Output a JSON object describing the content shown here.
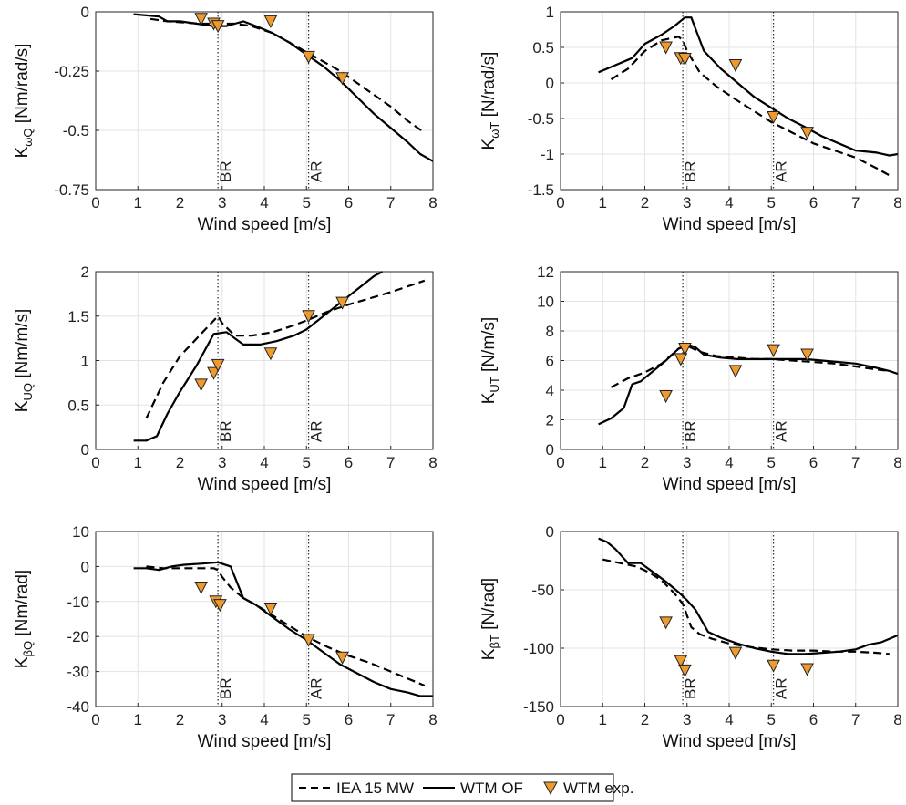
{
  "legend": [
    {
      "name": "IEA 15 MW",
      "style": "dashed"
    },
    {
      "name": "WTM OF",
      "style": "solid"
    },
    {
      "name": "WTM exp.",
      "style": "marker"
    }
  ],
  "colors": {
    "line": "#000000",
    "marker_fill": "#EE9A2E",
    "marker_edge": "#222222",
    "grid": "#e3e3e3",
    "vline": "#333333"
  },
  "chart_data": [
    {
      "type": "line",
      "ylabel_main": "K",
      "ylabel_sub": "ωQ",
      "ylabel_unit": " [Nm/rad/s]",
      "xlabel": "Wind speed [m/s]",
      "xlim": [
        0,
        8
      ],
      "ylim": [
        -0.75,
        0
      ],
      "xticks": [
        0,
        1,
        2,
        3,
        4,
        5,
        6,
        7,
        8
      ],
      "xtick_labels": [
        "0",
        "1",
        "2",
        "3",
        "4",
        "5",
        "6",
        "7",
        "8"
      ],
      "yticks": [
        0,
        -0.25,
        -0.5,
        -0.75
      ],
      "ytick_labels": [
        "0",
        "-0.25",
        "-0.5",
        "-0.75"
      ],
      "grid": true,
      "vlines": [
        {
          "x": 2.9,
          "label": "BR"
        },
        {
          "x": 5.05,
          "label": "AR"
        }
      ],
      "series": [
        {
          "name": "IEA 15 MW",
          "style": "dashed",
          "x": [
            1.3,
            1.7,
            2.1,
            2.5,
            2.9,
            3.3,
            3.7,
            4.2,
            4.6,
            5.0,
            5.4,
            5.8,
            6.2,
            6.6,
            7.0,
            7.4,
            7.8
          ],
          "y": [
            -0.03,
            -0.04,
            -0.045,
            -0.05,
            -0.05,
            -0.05,
            -0.06,
            -0.09,
            -0.13,
            -0.17,
            -0.21,
            -0.25,
            -0.3,
            -0.35,
            -0.4,
            -0.46,
            -0.51
          ]
        },
        {
          "name": "WTM OF",
          "style": "solid",
          "x": [
            0.9,
            1.2,
            1.5,
            1.7,
            2.0,
            2.4,
            2.8,
            3.1,
            3.3,
            3.5,
            3.8,
            4.2,
            4.6,
            5.0,
            5.4,
            5.8,
            6.2,
            6.6,
            7.0,
            7.4,
            7.7,
            8.0
          ],
          "y": [
            -0.01,
            -0.015,
            -0.02,
            -0.04,
            -0.04,
            -0.05,
            -0.06,
            -0.06,
            -0.05,
            -0.04,
            -0.06,
            -0.09,
            -0.13,
            -0.18,
            -0.23,
            -0.29,
            -0.36,
            -0.43,
            -0.49,
            -0.55,
            -0.6,
            -0.63
          ]
        },
        {
          "name": "WTM exp.",
          "style": "marker",
          "x": [
            2.5,
            2.8,
            2.9,
            4.15,
            5.05,
            5.85
          ],
          "y": [
            -0.03,
            -0.05,
            -0.06,
            -0.04,
            -0.19,
            -0.28
          ]
        }
      ]
    },
    {
      "type": "line",
      "ylabel_main": "K",
      "ylabel_sub": "ωT",
      "ylabel_unit": " [N/rad/s]",
      "xlabel": "Wind speed [m/s]",
      "xlim": [
        0,
        8
      ],
      "ylim": [
        -1.5,
        1
      ],
      "xticks": [
        0,
        1,
        2,
        3,
        4,
        5,
        6,
        7,
        8
      ],
      "xtick_labels": [
        "0",
        "1",
        "2",
        "3",
        "4",
        "5",
        "6",
        "7",
        "8"
      ],
      "yticks": [
        1,
        0.5,
        0,
        -0.5,
        -1,
        -1.5
      ],
      "ytick_labels": [
        "1",
        "0.5",
        "0",
        "-0.5",
        "-1",
        "-1.5"
      ],
      "grid": true,
      "vlines": [
        {
          "x": 2.9,
          "label": "BR"
        },
        {
          "x": 5.05,
          "label": "AR"
        }
      ],
      "series": [
        {
          "name": "IEA 15 MW",
          "style": "dashed",
          "x": [
            1.2,
            1.6,
            2.0,
            2.4,
            2.8,
            2.9,
            3.0,
            3.3,
            3.7,
            4.2,
            4.6,
            5.0,
            5.5,
            6.0,
            6.5,
            7.0,
            7.5,
            7.8
          ],
          "y": [
            0.05,
            0.2,
            0.45,
            0.6,
            0.65,
            0.6,
            0.45,
            0.15,
            -0.05,
            -0.25,
            -0.4,
            -0.55,
            -0.7,
            -0.85,
            -0.95,
            -1.05,
            -1.2,
            -1.3
          ]
        },
        {
          "name": "WTM OF",
          "style": "solid",
          "x": [
            0.9,
            1.3,
            1.7,
            2.0,
            2.4,
            2.7,
            2.95,
            3.1,
            3.4,
            3.8,
            4.2,
            4.6,
            5.0,
            5.4,
            5.8,
            6.2,
            6.6,
            7.0,
            7.5,
            7.8,
            8.0
          ],
          "y": [
            0.15,
            0.25,
            0.35,
            0.55,
            0.68,
            0.8,
            0.92,
            0.92,
            0.45,
            0.2,
            0.0,
            -0.2,
            -0.35,
            -0.5,
            -0.62,
            -0.75,
            -0.85,
            -0.95,
            -0.98,
            -1.02,
            -1.0
          ]
        },
        {
          "name": "WTM exp.",
          "style": "marker",
          "x": [
            2.5,
            2.85,
            2.95,
            4.15,
            5.05,
            5.85
          ],
          "y": [
            0.5,
            0.35,
            0.34,
            0.25,
            -0.48,
            -0.7
          ]
        }
      ]
    },
    {
      "type": "line",
      "ylabel_main": "K",
      "ylabel_sub": "UQ",
      "ylabel_unit": " [Nm/m/s]",
      "xlabel": "Wind speed [m/s]",
      "xlim": [
        0,
        8
      ],
      "ylim": [
        0,
        2
      ],
      "xticks": [
        0,
        1,
        2,
        3,
        4,
        5,
        6,
        7,
        8
      ],
      "xtick_labels": [
        "0",
        "1",
        "2",
        "3",
        "4",
        "5",
        "6",
        "7",
        "8"
      ],
      "yticks": [
        2,
        1.5,
        1,
        0.5,
        0
      ],
      "ytick_labels": [
        "2",
        "1.5",
        "1",
        "0.5",
        "0"
      ],
      "grid": true,
      "vlines": [
        {
          "x": 2.9,
          "label": "BR"
        },
        {
          "x": 5.05,
          "label": "AR"
        }
      ],
      "series": [
        {
          "name": "IEA 15 MW",
          "style": "dashed",
          "x": [
            1.2,
            1.6,
            2.0,
            2.4,
            2.8,
            2.9,
            3.0,
            3.3,
            3.7,
            4.2,
            4.6,
            5.0,
            5.5,
            6.0,
            6.5,
            7.0,
            7.5,
            7.8
          ],
          "y": [
            0.35,
            0.75,
            1.05,
            1.25,
            1.45,
            1.5,
            1.42,
            1.28,
            1.28,
            1.32,
            1.38,
            1.45,
            1.55,
            1.63,
            1.7,
            1.77,
            1.85,
            1.9
          ]
        },
        {
          "name": "WTM OF",
          "style": "solid",
          "x": [
            0.9,
            1.2,
            1.45,
            1.7,
            2.0,
            2.4,
            2.8,
            3.1,
            3.3,
            3.5,
            3.9,
            4.3,
            4.7,
            5.0,
            5.4,
            5.8,
            6.2,
            6.6,
            6.8
          ],
          "y": [
            0.1,
            0.1,
            0.15,
            0.4,
            0.65,
            0.95,
            1.3,
            1.32,
            1.25,
            1.18,
            1.18,
            1.22,
            1.28,
            1.35,
            1.5,
            1.65,
            1.8,
            1.95,
            2.0
          ]
        },
        {
          "name": "WTM exp.",
          "style": "marker",
          "x": [
            2.5,
            2.8,
            2.9,
            4.15,
            5.05,
            5.85
          ],
          "y": [
            0.73,
            0.86,
            0.95,
            1.08,
            1.5,
            1.65
          ]
        }
      ]
    },
    {
      "type": "line",
      "ylabel_main": "K",
      "ylabel_sub": "UT",
      "ylabel_unit": " [N/m/s]",
      "xlabel": "Wind speed [m/s]",
      "xlim": [
        0,
        8
      ],
      "ylim": [
        0,
        12
      ],
      "xticks": [
        0,
        1,
        2,
        3,
        4,
        5,
        6,
        7,
        8
      ],
      "xtick_labels": [
        "0",
        "1",
        "2",
        "3",
        "4",
        "5",
        "6",
        "7",
        "8"
      ],
      "yticks": [
        12,
        10,
        8,
        6,
        4,
        2,
        0
      ],
      "ytick_labels": [
        "12",
        "10",
        "8",
        "6",
        "4",
        "2",
        "0"
      ],
      "grid": true,
      "vlines": [
        {
          "x": 2.9,
          "label": "BR"
        },
        {
          "x": 5.05,
          "label": "AR"
        }
      ],
      "series": [
        {
          "name": "IEA 15 MW",
          "style": "dashed",
          "x": [
            1.2,
            1.6,
            2.0,
            2.4,
            2.8,
            3.0,
            3.3,
            3.7,
            4.2,
            4.6,
            5.0,
            5.5,
            6.0,
            6.5,
            7.0,
            7.5,
            7.8
          ],
          "y": [
            4.2,
            4.8,
            5.2,
            5.8,
            6.8,
            7.0,
            6.6,
            6.3,
            6.2,
            6.1,
            6.1,
            6.0,
            5.9,
            5.8,
            5.6,
            5.4,
            5.3
          ]
        },
        {
          "name": "WTM OF",
          "style": "solid",
          "x": [
            0.9,
            1.2,
            1.5,
            1.7,
            1.9,
            2.2,
            2.5,
            2.8,
            3.0,
            3.2,
            3.4,
            3.8,
            4.2,
            4.6,
            5.0,
            5.4,
            5.8,
            6.2,
            6.6,
            7.0,
            7.5,
            7.8,
            8.0
          ],
          "y": [
            1.7,
            2.1,
            2.8,
            4.4,
            4.6,
            5.3,
            6.0,
            6.8,
            7.1,
            6.9,
            6.4,
            6.2,
            6.1,
            6.1,
            6.1,
            6.1,
            6.1,
            6.0,
            5.9,
            5.8,
            5.5,
            5.3,
            5.1
          ]
        },
        {
          "name": "WTM exp.",
          "style": "marker",
          "x": [
            2.5,
            2.85,
            2.95,
            4.15,
            5.05,
            5.85
          ],
          "y": [
            3.6,
            6.1,
            6.8,
            5.3,
            6.7,
            6.4
          ]
        }
      ]
    },
    {
      "type": "line",
      "ylabel_main": "K",
      "ylabel_sub": "βQ",
      "ylabel_unit": " [Nm/rad]",
      "xlabel": "Wind speed [m/s]",
      "xlim": [
        0,
        8
      ],
      "ylim": [
        -40,
        10
      ],
      "xticks": [
        0,
        1,
        2,
        3,
        4,
        5,
        6,
        7,
        8
      ],
      "xtick_labels": [
        "0",
        "1",
        "2",
        "3",
        "4",
        "5",
        "6",
        "7",
        "8"
      ],
      "yticks": [
        10,
        0,
        -10,
        -20,
        -30,
        -40
      ],
      "ytick_labels": [
        "10",
        "0",
        "-10",
        "-20",
        "-30",
        "-40"
      ],
      "grid": true,
      "vlines": [
        {
          "x": 2.9,
          "label": "BR"
        },
        {
          "x": 5.05,
          "label": "AR"
        }
      ],
      "series": [
        {
          "name": "IEA 15 MW",
          "style": "dashed",
          "x": [
            1.2,
            1.6,
            2.0,
            2.4,
            2.8,
            2.9,
            3.0,
            3.2,
            3.5,
            3.8,
            4.2,
            4.6,
            5.0,
            5.5,
            6.0,
            6.5,
            7.0,
            7.5,
            7.8
          ],
          "y": [
            0,
            -0.5,
            -0.5,
            -0.5,
            -0.5,
            -1.0,
            -3.0,
            -6.0,
            -9.0,
            -11.0,
            -14.0,
            -17.0,
            -20.0,
            -23.0,
            -25.5,
            -27.5,
            -30.0,
            -32.5,
            -34.0
          ]
        },
        {
          "name": "WTM OF",
          "style": "solid",
          "x": [
            0.9,
            1.2,
            1.5,
            1.8,
            2.1,
            2.5,
            2.9,
            3.2,
            3.5,
            3.8,
            4.2,
            4.6,
            5.0,
            5.4,
            5.8,
            6.2,
            6.6,
            7.0,
            7.4,
            7.7,
            8.0
          ],
          "y": [
            -0.5,
            -0.5,
            -1.0,
            0.0,
            0.5,
            0.8,
            1.2,
            0.0,
            -9.0,
            -11.0,
            -14.5,
            -18.0,
            -21.0,
            -24.5,
            -28.0,
            -30.5,
            -33.0,
            -35.0,
            -36.0,
            -37.0,
            -37.0
          ]
        },
        {
          "name": "WTM exp.",
          "style": "marker",
          "x": [
            2.5,
            2.85,
            2.95,
            4.15,
            5.05,
            5.85
          ],
          "y": [
            -6.0,
            -10.0,
            -11.0,
            -12.0,
            -21.0,
            -26.0
          ]
        }
      ]
    },
    {
      "type": "line",
      "ylabel_main": "K",
      "ylabel_sub": "βT",
      "ylabel_unit": " [N/rad]",
      "xlabel": "Wind speed [m/s]",
      "xlim": [
        0,
        8
      ],
      "ylim": [
        -150,
        0
      ],
      "xticks": [
        0,
        1,
        2,
        3,
        4,
        5,
        6,
        7,
        8
      ],
      "xtick_labels": [
        "0",
        "1",
        "2",
        "3",
        "4",
        "5",
        "6",
        "7",
        "8"
      ],
      "yticks": [
        0,
        -50,
        -100,
        -150
      ],
      "ytick_labels": [
        "0",
        "-50",
        "-100",
        "-150"
      ],
      "grid": true,
      "vlines": [
        {
          "x": 2.9,
          "label": "BR"
        },
        {
          "x": 5.05,
          "label": "AR"
        }
      ],
      "series": [
        {
          "name": "IEA 15 MW",
          "style": "dashed",
          "x": [
            1.0,
            1.4,
            1.8,
            2.1,
            2.4,
            2.7,
            2.9,
            3.1,
            3.3,
            3.6,
            4.0,
            4.5,
            5.0,
            5.5,
            6.0,
            6.5,
            7.0,
            7.5,
            7.8
          ],
          "y": [
            -24,
            -27,
            -30,
            -35,
            -42,
            -53,
            -62,
            -82,
            -88,
            -92,
            -96,
            -99,
            -101,
            -102,
            -102,
            -103,
            -103,
            -104,
            -105
          ]
        },
        {
          "name": "WTM OF",
          "style": "solid",
          "x": [
            0.9,
            1.1,
            1.3,
            1.6,
            1.9,
            2.2,
            2.5,
            2.8,
            3.0,
            3.2,
            3.5,
            3.8,
            4.2,
            4.6,
            5.0,
            5.4,
            5.8,
            6.2,
            6.6,
            7.0,
            7.3,
            7.6,
            8.0
          ],
          "y": [
            -6,
            -9,
            -15,
            -27,
            -27,
            -35,
            -43,
            -52,
            -59,
            -67,
            -86,
            -91,
            -96,
            -100,
            -103,
            -105,
            -105,
            -104,
            -103,
            -101,
            -97,
            -95,
            -89
          ]
        },
        {
          "name": "WTM exp.",
          "style": "marker",
          "x": [
            2.5,
            2.85,
            2.95,
            4.15,
            5.05,
            5.85
          ],
          "y": [
            -78,
            -111,
            -119,
            -104,
            -115,
            -118
          ]
        }
      ]
    }
  ]
}
